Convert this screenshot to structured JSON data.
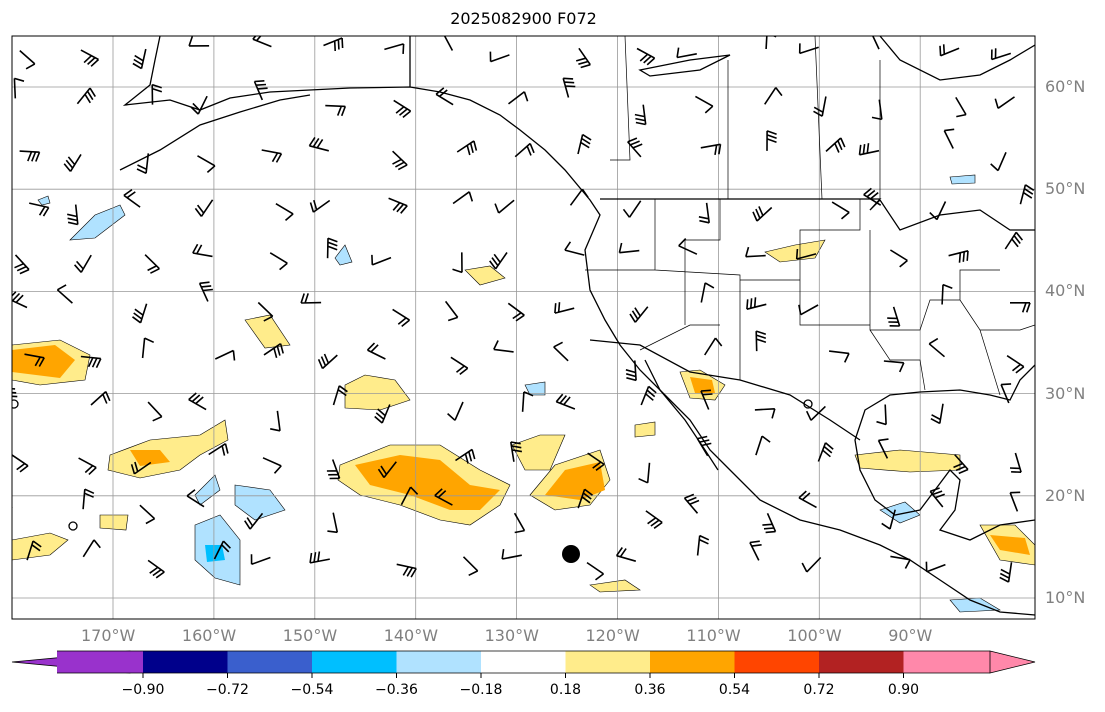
{
  "title": "2025082900 F072",
  "lon_labels": [
    "170°W",
    "160°W",
    "150°W",
    "140°W",
    "130°W",
    "120°W",
    "110°W",
    "100°W",
    "90°W"
  ],
  "lat_labels": [
    "60°N",
    "50°N",
    "40°N",
    "30°N",
    "20°N",
    "10°N"
  ],
  "colorbar": {
    "ticks": [
      "−0.90",
      "−0.72",
      "−0.54",
      "−0.36",
      "−0.18",
      "0.18",
      "0.36",
      "0.54",
      "0.72",
      "0.90"
    ],
    "colors": [
      "#9932cc",
      "#00008b",
      "#3a5fcd",
      "#00bfff",
      "#b0e2ff",
      "#ffffff",
      "#ffec8b",
      "#ffa500",
      "#ff4500",
      "#b22222",
      "#ff88aa"
    ]
  }
}
